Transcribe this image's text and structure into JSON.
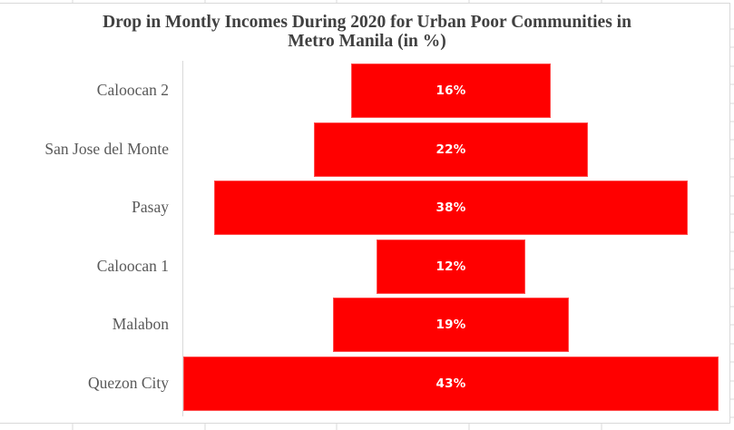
{
  "chart_data": {
    "type": "bar",
    "subtype": "funnel",
    "title": "Drop in Montly Incomes During 2020 for Urban Poor Communities in Metro Manila (in %)",
    "title_lines": [
      "Drop in Montly Incomes During 2020 for Urban Poor Communities in",
      "Metro Manila (in %)"
    ],
    "categories": [
      "Caloocan 2",
      "San Jose del Monte",
      "Pasay",
      "Caloocan 1",
      "Malabon",
      "Quezon City"
    ],
    "values": [
      16,
      22,
      38,
      12,
      19,
      43
    ],
    "data_labels": [
      "16%",
      "22%",
      "38%",
      "12%",
      "19%",
      "43%"
    ],
    "unit": "%",
    "xlabel": "",
    "ylabel": "",
    "legend": "none",
    "grid": false,
    "bar_color": "#ff0000",
    "label_color": "#ffffff"
  }
}
